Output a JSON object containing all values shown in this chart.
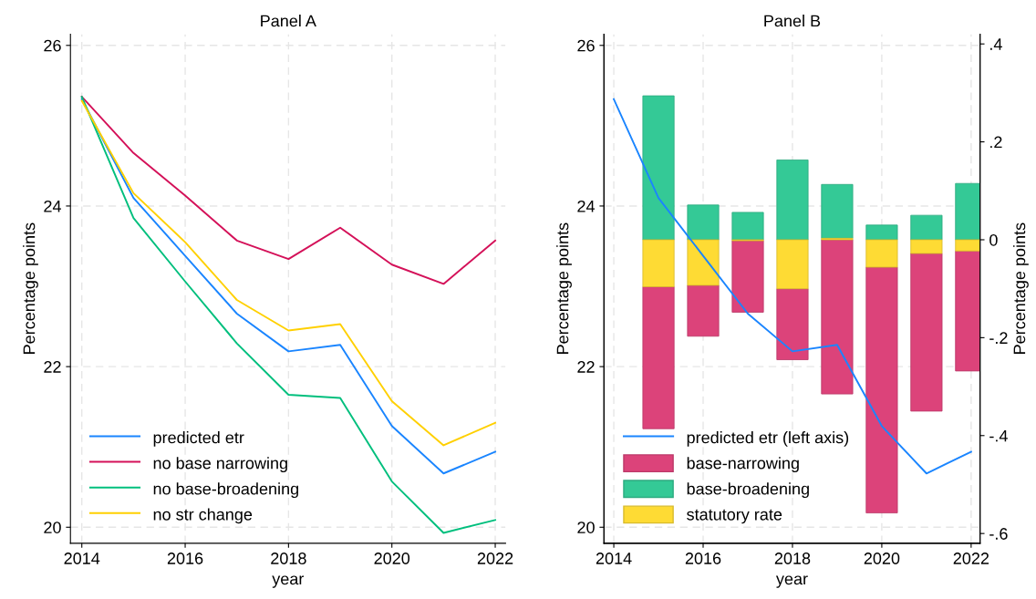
{
  "chart_data": [
    {
      "type": "line",
      "title": "Panel A",
      "xlabel": "year",
      "ylabel": "Percentage points",
      "x": [
        2014,
        2015,
        2016,
        2017,
        2018,
        2019,
        2020,
        2021,
        2022
      ],
      "xlim": [
        2013.78,
        2022.2
      ],
      "xticks": [
        2014,
        2016,
        2018,
        2020,
        2022
      ],
      "ylim": [
        19.8,
        26.14
      ],
      "yticks": [
        20,
        22,
        24,
        26
      ],
      "grid": true,
      "legend": "bottom left",
      "series": [
        {
          "name": "predicted etr",
          "color": "#1a85ff",
          "values": [
            25.33,
            24.1,
            23.38,
            22.66,
            22.19,
            22.27,
            21.26,
            20.67,
            20.94
          ]
        },
        {
          "name": "no base narrowing",
          "color": "#d41159",
          "values": [
            25.36,
            24.66,
            24.13,
            23.57,
            23.34,
            23.73,
            23.27,
            23.03,
            23.57
          ]
        },
        {
          "name": "no base-broadening",
          "color": "#00bf7d",
          "values": [
            25.36,
            23.85,
            23.06,
            22.29,
            21.65,
            21.61,
            20.57,
            19.93,
            20.09
          ]
        },
        {
          "name": "no str change",
          "color": "#ffd000",
          "values": [
            25.31,
            24.16,
            23.55,
            22.83,
            22.45,
            22.53,
            21.57,
            21.02,
            21.3
          ]
        }
      ]
    },
    {
      "type": "bar",
      "title": "Panel B",
      "xlabel": "year",
      "ylabel": "Percentage points",
      "y2label": "Percentage points",
      "x": [
        2014,
        2015,
        2016,
        2017,
        2018,
        2019,
        2020,
        2021,
        2022
      ],
      "xlim": [
        2013.78,
        2022.2
      ],
      "xticks": [
        2014,
        2016,
        2018,
        2020,
        2022
      ],
      "ylim": [
        19.8,
        26.14
      ],
      "yticks": [
        20,
        22,
        24,
        26
      ],
      "y2lim": [
        -0.62,
        0.42
      ],
      "y2ticks": [
        {
          "value": -0.6,
          "label": "-.6"
        },
        {
          "value": -0.4,
          "label": "-.4"
        },
        {
          "value": -0.2,
          "label": "-.2"
        },
        {
          "value": 0,
          "label": "0"
        },
        {
          "value": 0.2,
          "label": ".2"
        },
        {
          "value": 0.4,
          "label": ".4"
        }
      ],
      "grid": true,
      "legend": "bottom left",
      "stacked": true,
      "series": [
        {
          "name": "predicted etr (left axis)",
          "type": "line",
          "axis": "y",
          "color": "#1a85ff",
          "values": [
            25.33,
            24.1,
            23.38,
            22.66,
            22.19,
            22.27,
            21.26,
            20.67,
            20.94
          ]
        },
        {
          "name": "statutory rate",
          "axis": "y2",
          "color": "#fedb34",
          "values": [
            null,
            -0.096,
            -0.093,
            -0.002,
            -0.1,
            0.003,
            -0.056,
            -0.028,
            -0.023
          ]
        },
        {
          "name": "base-narrowing",
          "axis": "y2",
          "color": "#dc437a",
          "values": [
            null,
            -0.29,
            -0.104,
            -0.146,
            -0.145,
            -0.315,
            -0.502,
            -0.322,
            -0.245
          ]
        },
        {
          "name": "base-broadening",
          "axis": "y2",
          "color": "#34c996",
          "values": [
            null,
            0.294,
            0.071,
            0.056,
            0.163,
            0.11,
            0.03,
            0.05,
            0.115
          ]
        }
      ]
    }
  ]
}
